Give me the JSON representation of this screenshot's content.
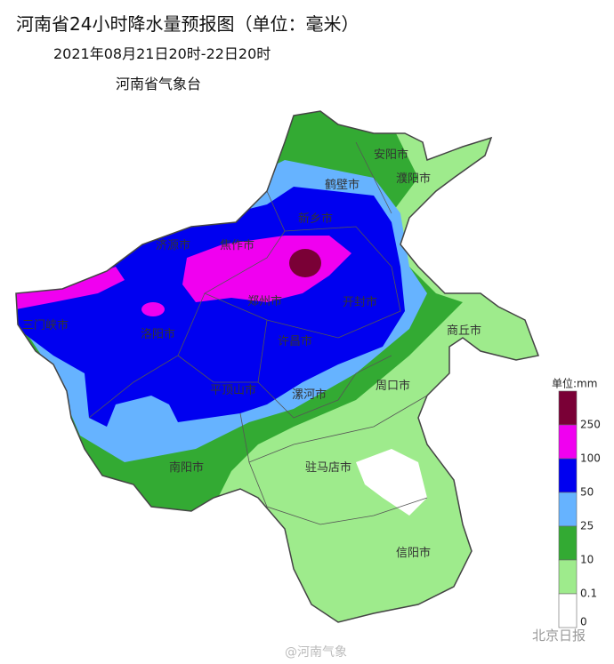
{
  "header": {
    "title": "河南省24小时降水量预报图（单位：毫米）",
    "period": "2021年08月21日20时-22日20时",
    "issuer": "河南省气象台"
  },
  "cities": [
    "安阳市",
    "鹤壁市",
    "濮阳市",
    "新乡市",
    "济源市",
    "焦作市",
    "郑州市",
    "开封市",
    "三门峡市",
    "洛阳市",
    "许昌市",
    "商丘市",
    "平顶山市",
    "漯河市",
    "周口市",
    "南阳市",
    "驻马店市",
    "信阳市"
  ],
  "legend": {
    "unit": "单位:mm",
    "colors": [
      "#7a0036",
      "#f000f0",
      "#0000f0",
      "#66b3ff",
      "#33aa33",
      "#9eeb8c",
      "#ffffff"
    ],
    "levels": [
      250,
      100,
      50,
      25,
      10,
      0.1,
      0
    ]
  },
  "watermarks": [
    "@河南气象",
    "北京日报"
  ]
}
